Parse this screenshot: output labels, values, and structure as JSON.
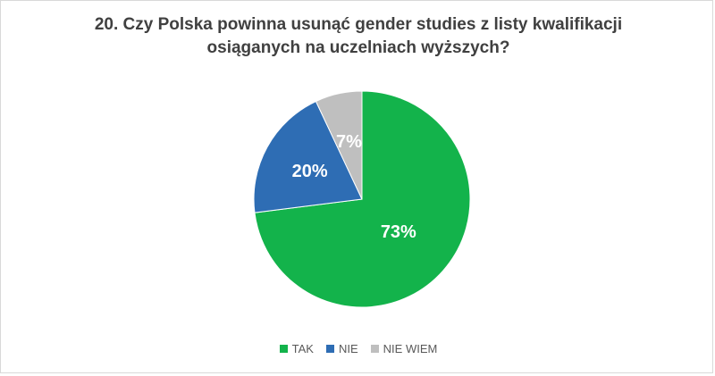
{
  "title_line1": "20. Czy Polska powinna usunąć gender studies z listy kwalifikacji",
  "title_line2": "osiąganych na uczelniach wyższych?",
  "chart_data": {
    "type": "pie",
    "title": "20. Czy Polska powinna usunąć gender studies z listy kwalifikacji osiąganych na uczelniach wyższych?",
    "legend_position": "bottom",
    "slices": [
      {
        "label": "TAK",
        "value": 73,
        "display": "73%",
        "color": "#13b34b"
      },
      {
        "label": "NIE",
        "value": 20,
        "display": "20%",
        "color": "#2e6db4"
      },
      {
        "label": "NIE WIEM",
        "value": 7,
        "display": "7%",
        "color": "#bfbfbf"
      }
    ]
  }
}
